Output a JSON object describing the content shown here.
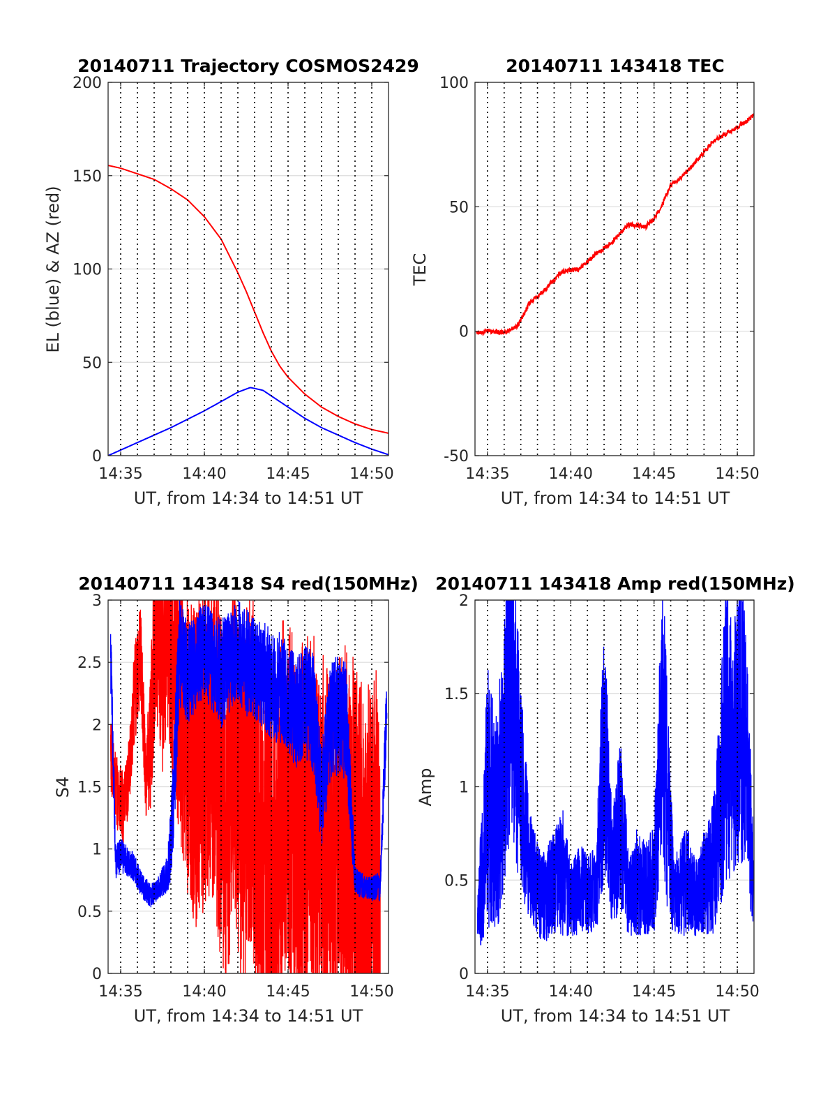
{
  "colors": {
    "red": "#ff0000",
    "blue": "#0000ff"
  },
  "chart_data": [
    {
      "id": "trajectory",
      "type": "line",
      "title": "20140711 Trajectory COSMOS2429",
      "xlabel": "UT, from 14:34 to 14:51 UT",
      "ylabel": "EL (blue) & AZ (red)",
      "xlim": [
        14.25,
        31.0
      ],
      "ylim": [
        0,
        200
      ],
      "xticks": [
        15,
        20,
        25,
        30
      ],
      "xtick_labels": [
        "14:35",
        "14:40",
        "14:45",
        "14:50"
      ],
      "yticks": [
        0,
        50,
        100,
        150,
        200
      ],
      "ytick_labels": [
        "0",
        "50",
        "100",
        "150",
        "200"
      ],
      "grid_minutes": [
        15,
        16,
        17,
        18,
        19,
        20,
        21,
        22,
        23,
        24,
        25,
        26,
        27,
        28,
        29,
        30
      ],
      "series": [
        {
          "color": "red",
          "x": [
            14.25,
            15,
            16,
            17,
            18,
            19,
            20,
            21,
            22,
            22.5,
            23,
            23.5,
            24,
            24.5,
            25,
            26,
            27,
            28,
            29,
            30,
            31
          ],
          "y": [
            155.5,
            154,
            151,
            148,
            143,
            137,
            128,
            116,
            98,
            88,
            77,
            66,
            56,
            48,
            42,
            33,
            26,
            21,
            17,
            14,
            12
          ]
        },
        {
          "color": "blue",
          "x": [
            14.25,
            15,
            16,
            17,
            18,
            19,
            20,
            21,
            22,
            22.75,
            23.5,
            24,
            25,
            26,
            27,
            28,
            29,
            30,
            31
          ],
          "y": [
            0,
            3,
            7,
            11,
            15,
            19.5,
            24,
            29,
            34,
            36.5,
            35,
            32,
            26,
            20,
            15,
            11,
            7,
            3.5,
            0.5
          ]
        }
      ]
    },
    {
      "id": "tec",
      "type": "line",
      "title": "20140711 143418 TEC",
      "xlabel": "UT, from 14:34 to 14:51 UT",
      "ylabel": "TEC",
      "xlim": [
        14.25,
        31.0
      ],
      "ylim": [
        -50,
        100
      ],
      "xticks": [
        15,
        20,
        25,
        30
      ],
      "xtick_labels": [
        "14:35",
        "14:40",
        "14:45",
        "14:50"
      ],
      "yticks": [
        -50,
        0,
        50,
        100
      ],
      "ytick_labels": [
        "-50",
        "0",
        "50",
        "100"
      ],
      "grid_minutes": [
        15,
        16,
        17,
        18,
        19,
        20,
        21,
        22,
        23,
        24,
        25,
        26,
        27,
        28,
        29,
        30
      ],
      "series": [
        {
          "color": "red",
          "x": [
            14.35,
            15,
            16,
            16.8,
            17.5,
            18.5,
            19.5,
            20.5,
            21.5,
            22.5,
            23.5,
            24.5,
            25,
            25.5,
            26,
            26.5,
            27.5,
            28.5,
            29.5,
            30.5,
            31
          ],
          "y": [
            -0.5,
            0,
            -0.5,
            2,
            11,
            17,
            24,
            25,
            31,
            36,
            43,
            42,
            45,
            51,
            59,
            61,
            68,
            76,
            80,
            84,
            87
          ]
        }
      ]
    },
    {
      "id": "s4",
      "type": "line",
      "title": "20140711 143418 S4 red(150MHz)",
      "xlabel": "UT, from 14:34 to 14:51 UT",
      "ylabel": "S4",
      "xlim": [
        14.25,
        31.0
      ],
      "ylim": [
        0,
        3
      ],
      "xticks": [
        15,
        20,
        25,
        30
      ],
      "xtick_labels": [
        "14:35",
        "14:40",
        "14:45",
        "14:50"
      ],
      "yticks": [
        0,
        0.5,
        1,
        1.5,
        2,
        2.5,
        3
      ],
      "ytick_labels": [
        "0",
        "0.5",
        "1",
        "1.5",
        "2",
        "2.5",
        "3"
      ],
      "grid_minutes": [
        15,
        16,
        17,
        18,
        19,
        20,
        21,
        22,
        23,
        24,
        25,
        26,
        27,
        28,
        29,
        30
      ],
      "series": [
        {
          "color": "red",
          "x": [
            14.4,
            14.6,
            14.8,
            15.2,
            15.5,
            15.8,
            16.2,
            16.5,
            16.8,
            17.1,
            17.5,
            17.8,
            18.3,
            18.9,
            19.5,
            20.1,
            20.6,
            21.3,
            21.8,
            22.2,
            22.8,
            23.5,
            24.2,
            24.8,
            25.5,
            26.5,
            27.5,
            28.5,
            29.5,
            30.5
          ],
          "y": [
            1.8,
            1.55,
            1.45,
            1.3,
            1.6,
            2.2,
            2.6,
            1.55,
            1.9,
            2.9,
            2.5,
            2.75,
            2.3,
            1.9,
            1.6,
            1.9,
            1.95,
            1.1,
            2.0,
            1.2,
            1.7,
            1.0,
            0.8,
            1.5,
            1.1,
            1.3,
            0.9,
            1.2,
            0.8,
            1.0
          ],
          "spread": [
            0.3,
            0.3,
            0.3,
            0.3,
            0.3,
            0.4,
            0.4,
            0.3,
            0.6,
            0.8,
            0.9,
            0.8,
            1.0,
            1.2,
            1.3,
            1.4,
            1.4,
            1.4,
            1.4,
            1.5,
            1.5,
            1.5,
            1.5,
            1.5,
            1.5,
            1.5,
            1.5,
            1.5,
            1.5,
            1.5
          ]
        },
        {
          "color": "blue",
          "x": [
            14.4,
            14.7,
            15.0,
            15.4,
            15.8,
            16.3,
            16.8,
            17.3,
            17.8,
            18.1,
            18.5,
            19.0,
            19.5,
            20.0,
            20.5,
            21.0,
            21.5,
            22.0,
            22.5,
            23.0,
            23.5,
            24.0,
            24.5,
            25.0,
            25.5,
            26.0,
            26.5,
            27.0,
            27.5,
            28.0,
            28.5,
            29.0,
            29.5,
            30.0,
            30.5,
            30.9
          ],
          "y": [
            2.6,
            0.9,
            0.95,
            0.9,
            0.85,
            0.7,
            0.62,
            0.7,
            0.8,
            1.2,
            2.6,
            2.4,
            2.5,
            2.6,
            2.5,
            2.4,
            2.5,
            2.6,
            2.5,
            2.45,
            2.4,
            2.3,
            2.3,
            2.2,
            2.1,
            2.2,
            2.1,
            1.4,
            2.0,
            2.1,
            2.0,
            0.75,
            0.7,
            0.68,
            0.7,
            2.2
          ],
          "spread": [
            0.3,
            0.15,
            0.15,
            0.12,
            0.12,
            0.1,
            0.1,
            0.1,
            0.15,
            0.4,
            0.45,
            0.4,
            0.4,
            0.4,
            0.4,
            0.45,
            0.4,
            0.4,
            0.45,
            0.4,
            0.45,
            0.45,
            0.45,
            0.45,
            0.45,
            0.45,
            0.5,
            0.4,
            0.5,
            0.5,
            0.5,
            0.12,
            0.1,
            0.1,
            0.12,
            0.3
          ]
        }
      ]
    },
    {
      "id": "amp",
      "type": "line",
      "title": "20140711 143418 Amp red(150MHz)",
      "xlabel": "UT, from 14:34 to 14:51 UT",
      "ylabel": "Amp",
      "xlim": [
        14.25,
        31.0
      ],
      "ylim": [
        0,
        2
      ],
      "xticks": [
        15,
        20,
        25,
        30
      ],
      "xtick_labels": [
        "14:35",
        "14:40",
        "14:45",
        "14:50"
      ],
      "yticks": [
        0,
        0.5,
        1,
        1.5,
        2
      ],
      "ytick_labels": [
        "0",
        "0.5",
        "1",
        "1.5",
        "2"
      ],
      "grid_minutes": [
        15,
        16,
        17,
        18,
        19,
        20,
        21,
        22,
        23,
        24,
        25,
        26,
        27,
        28,
        29,
        30
      ],
      "series": [
        {
          "color": "blue",
          "x": [
            14.4,
            15.0,
            15.5,
            16.0,
            16.2,
            16.5,
            17.0,
            17.5,
            18.0,
            18.5,
            19.0,
            19.5,
            20.0,
            20.5,
            21.0,
            21.5,
            22.0,
            22.5,
            23.0,
            23.5,
            24.0,
            24.5,
            25.0,
            25.5,
            25.8,
            26.2,
            26.5,
            27.0,
            27.5,
            28.0,
            28.5,
            29.0,
            29.3,
            29.7,
            30.0,
            30.3,
            30.6,
            30.95
          ],
          "y": [
            0.25,
            0.95,
            0.8,
            1.1,
            1.55,
            1.7,
            1.0,
            0.6,
            0.45,
            0.4,
            0.5,
            0.55,
            0.4,
            0.45,
            0.42,
            0.45,
            1.2,
            0.55,
            0.8,
            0.4,
            0.5,
            0.45,
            0.5,
            1.45,
            0.9,
            0.4,
            0.45,
            0.5,
            0.4,
            0.5,
            0.55,
            0.95,
            1.3,
            1.2,
            1.4,
            1.35,
            1.1,
            0.5
          ],
          "spread": [
            0.15,
            0.7,
            0.6,
            0.7,
            0.9,
            1.0,
            0.6,
            0.3,
            0.25,
            0.25,
            0.3,
            0.35,
            0.2,
            0.25,
            0.22,
            0.25,
            0.7,
            0.3,
            0.5,
            0.2,
            0.3,
            0.25,
            0.3,
            0.8,
            0.6,
            0.2,
            0.25,
            0.3,
            0.2,
            0.3,
            0.35,
            0.6,
            0.8,
            0.7,
            0.8,
            0.8,
            0.6,
            0.3
          ]
        }
      ]
    }
  ]
}
